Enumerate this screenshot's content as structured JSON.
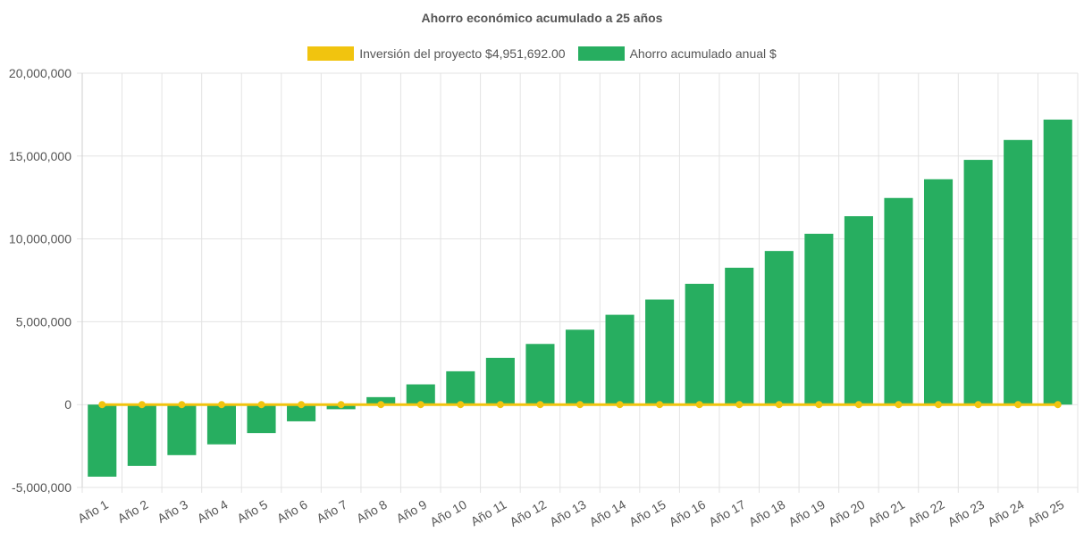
{
  "chart_data": {
    "type": "bar",
    "title": "Ahorro económico acumulado a 25 años",
    "categories": [
      "Año 1",
      "Año 2",
      "Año 3",
      "Año 4",
      "Año 5",
      "Año 6",
      "Año 7",
      "Año 8",
      "Año 9",
      "Año 10",
      "Año 11",
      "Año 12",
      "Año 13",
      "Año 14",
      "Año 15",
      "Año 16",
      "Año 17",
      "Año 18",
      "Año 19",
      "Año 20",
      "Año 21",
      "Año 22",
      "Año 23",
      "Año 24",
      "Año 25"
    ],
    "series": [
      {
        "name": "Inversión del proyecto $4,951,692.00",
        "type": "line",
        "color": "#F1C40F",
        "values": [
          0,
          0,
          0,
          0,
          0,
          0,
          0,
          0,
          0,
          0,
          0,
          0,
          0,
          0,
          0,
          0,
          0,
          0,
          0,
          0,
          0,
          0,
          0,
          0,
          0
        ]
      },
      {
        "name": "Ahorro acumulado anual $",
        "type": "bar",
        "color": "#27AE60",
        "values": [
          -4350000,
          -3700000,
          -3050000,
          -2400000,
          -1720000,
          -1010000,
          -280000,
          450000,
          1220000,
          2010000,
          2820000,
          3660000,
          4520000,
          5420000,
          6340000,
          7290000,
          8260000,
          9270000,
          10310000,
          11370000,
          12470000,
          13600000,
          14770000,
          15970000,
          17200000
        ]
      }
    ],
    "ylim": [
      -5000000,
      20000000
    ],
    "yticks": [
      -5000000,
      0,
      5000000,
      10000000,
      15000000,
      20000000
    ],
    "ytick_labels": [
      "-5,000,000",
      "0",
      "5,000,000",
      "10,000,000",
      "15,000,000",
      "20,000,000"
    ],
    "grid": true,
    "legend_position": "top-center"
  }
}
